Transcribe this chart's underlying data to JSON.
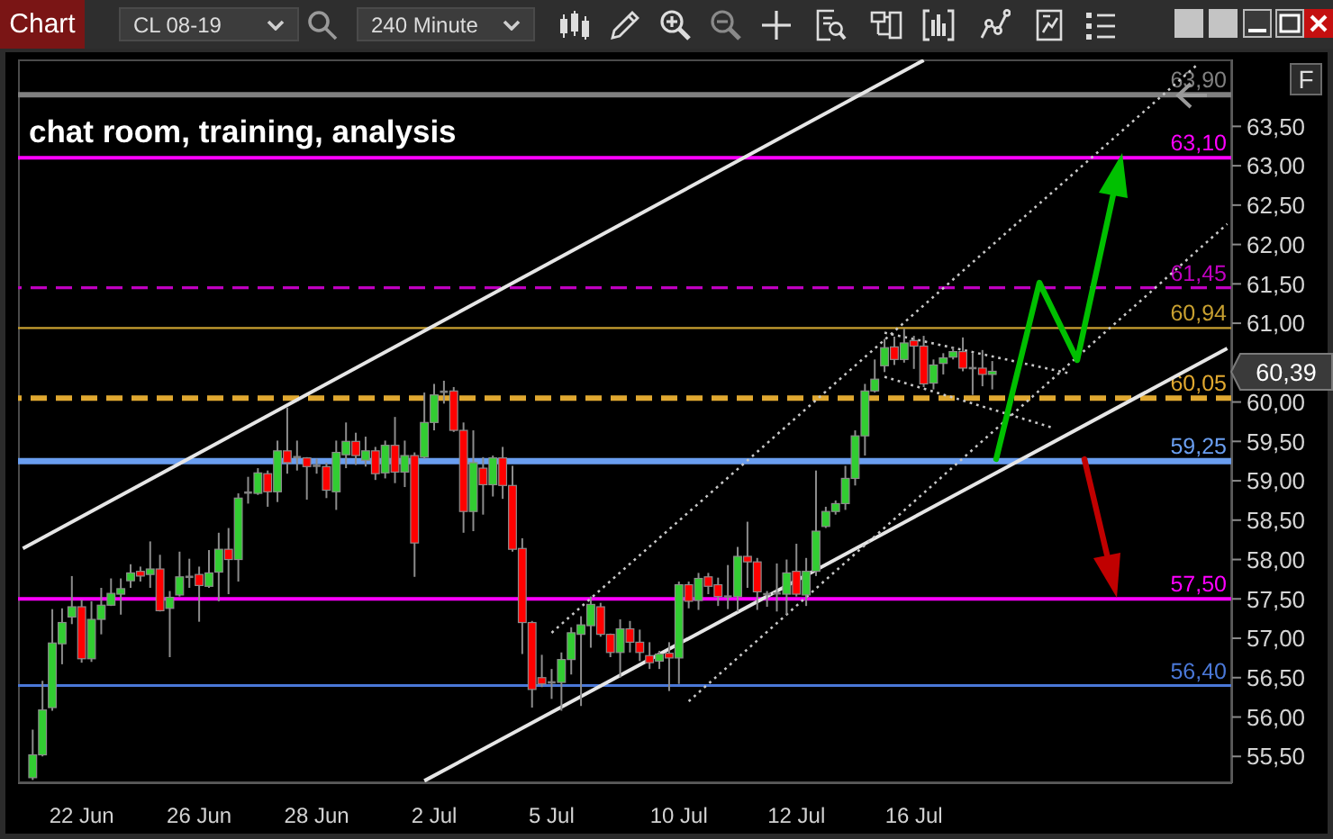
{
  "chart_data": {
    "type": "candlestick",
    "subtitle": "chat room, training, analysis",
    "categories": [
      null,
      null,
      null,
      null,
      null,
      null,
      "22 Jun",
      null,
      null,
      null,
      null,
      null,
      null,
      null,
      null,
      null,
      null,
      null,
      "26 Jun",
      null,
      null,
      null,
      null,
      null,
      null,
      null,
      null,
      null,
      null,
      null,
      "28 Jun",
      null,
      null,
      null,
      null,
      null,
      null,
      null,
      null,
      null,
      null,
      null,
      "2 Jul",
      null,
      null,
      null,
      null,
      null,
      null,
      null,
      null,
      null,
      null,
      null,
      "5 Jul",
      null,
      null,
      null,
      null,
      null,
      null,
      null,
      null,
      null,
      null,
      null,
      null,
      "10 Jul",
      null,
      null,
      null,
      null,
      null,
      null,
      null,
      null,
      null,
      null,
      null,
      "12 Jul",
      null,
      null,
      null,
      null,
      null,
      null,
      null,
      null,
      null,
      null,
      null,
      "16 Jul",
      null,
      null,
      null,
      null,
      null,
      null,
      null,
      null,
      null,
      null,
      null,
      null,
      null,
      null,
      null,
      null,
      null,
      null,
      null,
      null,
      null,
      null,
      null,
      null,
      null,
      null,
      null,
      null,
      null,
      null,
      null,
      null
    ],
    "ohlc": [
      null,
      [
        55.23,
        55.84,
        55.2,
        55.52
      ],
      [
        55.52,
        56.46,
        55.5,
        56.09
      ],
      [
        56.12,
        57.37,
        56.08,
        56.94
      ],
      [
        56.93,
        57.38,
        56.67,
        57.2
      ],
      [
        57.27,
        57.79,
        57.18,
        57.4
      ],
      [
        57.4,
        57.49,
        56.69,
        56.74
      ],
      [
        56.74,
        57.47,
        56.7,
        57.24
      ],
      [
        57.24,
        57.64,
        57.05,
        57.42
      ],
      [
        57.42,
        57.76,
        57.41,
        57.57
      ],
      [
        57.56,
        57.76,
        57.3,
        57.63
      ],
      [
        57.73,
        57.94,
        57.64,
        57.83
      ],
      [
        57.85,
        57.91,
        57.72,
        57.79
      ],
      [
        57.81,
        58.23,
        57.64,
        57.88
      ],
      [
        57.88,
        58.06,
        57.34,
        57.35
      ],
      [
        57.38,
        57.6,
        56.76,
        57.52
      ],
      [
        57.55,
        58.1,
        57.53,
        57.78
      ],
      [
        57.79,
        58.01,
        57.64,
        57.78
      ],
      [
        57.81,
        57.91,
        57.21,
        57.67
      ],
      [
        57.66,
        58.12,
        57.64,
        57.83
      ],
      [
        57.84,
        58.34,
        57.47,
        58.13
      ],
      [
        58.13,
        58.4,
        57.56,
        58.0
      ],
      [
        58.0,
        58.84,
        57.72,
        58.78
      ],
      [
        58.84,
        59.05,
        58.71,
        58.85
      ],
      [
        58.84,
        59.16,
        58.82,
        59.1
      ],
      [
        59.09,
        59.13,
        58.67,
        58.86
      ],
      [
        58.86,
        59.51,
        58.73,
        59.38
      ],
      [
        59.38,
        59.93,
        59.09,
        59.23
      ],
      [
        59.3,
        59.51,
        59.13,
        59.3
      ],
      [
        59.29,
        59.3,
        58.76,
        59.18
      ],
      [
        59.19,
        59.28,
        59.09,
        59.19
      ],
      [
        59.18,
        59.23,
        58.78,
        58.88
      ],
      [
        58.86,
        59.51,
        58.63,
        59.36
      ],
      [
        59.33,
        59.74,
        59.16,
        59.5
      ],
      [
        59.5,
        59.61,
        59.2,
        59.32
      ],
      [
        59.26,
        59.56,
        59.18,
        59.38
      ],
      [
        59.38,
        59.43,
        59.01,
        59.09
      ],
      [
        59.1,
        59.51,
        59.03,
        59.45
      ],
      [
        59.45,
        59.81,
        58.97,
        59.11
      ],
      [
        59.11,
        59.51,
        58.92,
        59.32
      ],
      [
        59.32,
        59.36,
        57.78,
        58.21
      ],
      [
        59.3,
        60.12,
        59.28,
        59.74
      ],
      [
        59.74,
        60.23,
        59.64,
        60.09
      ],
      [
        60.13,
        60.27,
        59.98,
        60.13
      ],
      [
        60.14,
        60.19,
        59.62,
        59.64
      ],
      [
        59.64,
        59.74,
        58.34,
        58.61
      ],
      [
        58.61,
        59.64,
        58.36,
        59.23
      ],
      [
        59.16,
        59.3,
        58.57,
        58.95
      ],
      [
        58.95,
        59.32,
        58.8,
        59.29
      ],
      [
        59.29,
        59.43,
        58.77,
        58.94
      ],
      [
        58.94,
        59.19,
        58.1,
        58.13
      ],
      [
        58.14,
        58.27,
        56.8,
        57.2
      ],
      [
        57.2,
        57.22,
        56.12,
        56.35
      ],
      [
        56.5,
        56.79,
        56.38,
        56.42
      ],
      [
        56.44,
        56.61,
        56.23,
        56.44
      ],
      [
        56.44,
        56.82,
        56.08,
        56.73
      ],
      [
        56.73,
        57.14,
        56.54,
        57.07
      ],
      [
        57.05,
        57.28,
        56.14,
        57.17
      ],
      [
        57.16,
        57.53,
        56.88,
        57.43
      ],
      [
        57.4,
        57.45,
        57.02,
        57.05
      ],
      [
        57.05,
        57.06,
        56.76,
        56.82
      ],
      [
        56.82,
        57.24,
        56.5,
        57.12
      ],
      [
        57.12,
        57.22,
        56.82,
        56.95
      ],
      [
        56.95,
        57.11,
        56.71,
        56.82
      ],
      [
        56.78,
        56.95,
        56.61,
        56.69
      ],
      [
        56.71,
        56.84,
        56.61,
        56.8
      ],
      [
        56.81,
        56.95,
        56.33,
        56.75
      ],
      [
        56.75,
        57.72,
        56.42,
        57.68
      ],
      [
        57.68,
        57.72,
        57.38,
        57.47
      ],
      [
        57.48,
        57.83,
        57.36,
        57.76
      ],
      [
        57.78,
        57.83,
        57.56,
        57.66
      ],
      [
        57.68,
        57.77,
        57.41,
        57.53
      ],
      [
        57.53,
        57.93,
        57.37,
        57.53
      ],
      [
        57.53,
        58.16,
        57.34,
        58.04
      ],
      [
        58.04,
        58.48,
        57.64,
        57.97
      ],
      [
        57.97,
        58.02,
        57.36,
        57.59
      ],
      [
        57.57,
        57.6,
        57.4,
        57.56
      ],
      [
        57.57,
        57.95,
        57.34,
        57.57
      ],
      [
        57.56,
        58.0,
        57.3,
        57.83
      ],
      [
        57.85,
        58.2,
        57.53,
        57.56
      ],
      [
        57.55,
        58.02,
        57.41,
        57.85
      ],
      [
        57.85,
        59.13,
        57.79,
        58.36
      ],
      [
        58.42,
        58.67,
        58.4,
        58.61
      ],
      [
        58.61,
        58.75,
        58.57,
        58.71
      ],
      [
        58.71,
        59.19,
        58.63,
        59.03
      ],
      [
        59.03,
        59.64,
        58.94,
        59.57
      ],
      [
        59.57,
        60.23,
        59.32,
        60.14
      ],
      [
        60.14,
        60.54,
        60.12,
        60.29
      ],
      [
        60.46,
        60.8,
        60.38,
        60.69
      ],
      [
        60.7,
        60.83,
        60.47,
        60.54
      ],
      [
        60.54,
        60.93,
        60.5,
        60.75
      ],
      [
        60.78,
        60.84,
        60.42,
        60.71
      ],
      [
        60.71,
        60.84,
        60.19,
        60.23
      ],
      [
        60.24,
        60.54,
        60.16,
        60.47
      ],
      [
        60.49,
        60.62,
        60.35,
        60.56
      ],
      [
        60.57,
        60.7,
        60.54,
        60.64
      ],
      [
        60.64,
        60.82,
        60.39,
        60.43
      ],
      [
        60.43,
        60.62,
        60.09,
        60.43
      ],
      [
        60.43,
        60.66,
        60.2,
        60.35
      ],
      [
        60.35,
        60.52,
        60.16,
        60.39
      ],
      null,
      null,
      null,
      null,
      null,
      null,
      null,
      null,
      null,
      null,
      null,
      null,
      null,
      null,
      null,
      null,
      null,
      null,
      null,
      null,
      null,
      null,
      null,
      null
    ],
    "colors": [
      null,
      "#32cd32",
      "#32cd32",
      "#32cd32",
      "#32cd32",
      "#32cd32",
      "#ff0000",
      "#32cd32",
      "#32cd32",
      "#32cd32",
      "#32cd32",
      "#32cd32",
      "#ff0000",
      "#32cd32",
      "#ff0000",
      "#32cd32",
      "#32cd32",
      "#808080",
      "#ff0000",
      "#32cd32",
      "#32cd32",
      "#ff0000",
      "#32cd32",
      "#808080",
      "#32cd32",
      "#ff0000",
      "#32cd32",
      "#ff0000",
      "#808080",
      "#ff0000",
      "#808080",
      "#ff0000",
      "#32cd32",
      "#32cd32",
      "#ff0000",
      "#32cd32",
      "#ff0000",
      "#32cd32",
      "#ff0000",
      "#32cd32",
      "#ff0000",
      "#32cd32",
      "#32cd32",
      "#808080",
      "#ff0000",
      "#ff0000",
      "#32cd32",
      "#ff0000",
      "#32cd32",
      "#ff0000",
      "#ff0000",
      "#ff0000",
      "#ff0000",
      "#ff0000",
      "#808080",
      "#32cd32",
      "#32cd32",
      "#32cd32",
      "#32cd32",
      "#ff0000",
      "#ff0000",
      "#32cd32",
      "#ff0000",
      "#ff0000",
      "#ff0000",
      "#32cd32",
      "#ff0000",
      "#32cd32",
      "#ff0000",
      "#32cd32",
      "#ff0000",
      "#ff0000",
      "#808080",
      "#32cd32",
      "#ff0000",
      "#ff0000",
      "#808080",
      "#808080",
      "#32cd32",
      "#ff0000",
      "#32cd32",
      "#32cd32",
      "#32cd32",
      "#32cd32",
      "#32cd32",
      "#32cd32",
      "#32cd32",
      "#32cd32",
      "#32cd32",
      "#ff0000",
      "#32cd32",
      "#ff0000",
      "#ff0000",
      "#32cd32",
      "#32cd32",
      "#32cd32",
      "#ff0000",
      "#808080",
      "#ff0000",
      "#32cd32",
      null,
      null,
      null,
      null,
      null,
      null,
      null,
      null,
      null,
      null,
      null,
      null,
      null,
      null,
      null,
      null,
      null,
      null,
      null,
      null,
      null,
      null,
      null,
      null
    ],
    "ylim": [
      55.16,
      64.35
    ],
    "yticks": [
      {
        "value": 55.5,
        "label": "55,50"
      },
      {
        "value": 56,
        "label": "56,00"
      },
      {
        "value": 56.5,
        "label": "56,50"
      },
      {
        "value": 57,
        "label": "57,00"
      },
      {
        "value": 57.5,
        "label": "57,50"
      },
      {
        "value": 58,
        "label": "58,00"
      },
      {
        "value": 58.5,
        "label": "58,50"
      },
      {
        "value": 59,
        "label": "59,00"
      },
      {
        "value": 59.5,
        "label": "59,50"
      },
      {
        "value": 60,
        "label": "60,00"
      },
      {
        "value": 61,
        "label": "61,00"
      },
      {
        "value": 61.5,
        "label": "61,50"
      },
      {
        "value": 62,
        "label": "62,00"
      },
      {
        "value": 62.5,
        "label": "62,50"
      },
      {
        "value": 63,
        "label": "63,00"
      },
      {
        "value": 63.5,
        "label": "63,50"
      }
    ],
    "series": [
      {
        "type": "line",
        "color": "#e6e6e6",
        "line_style": "solid",
        "values": [
          58.14,
          null,
          null,
          null,
          null,
          null,
          null,
          null,
          null,
          null,
          null,
          null,
          null,
          null,
          null,
          null,
          null,
          null,
          null,
          null,
          null,
          null,
          null,
          null,
          null,
          null,
          null,
          null,
          null,
          null,
          null,
          null,
          null,
          null,
          null,
          null,
          null,
          null,
          null,
          null,
          null,
          null,
          null,
          null,
          null,
          null,
          null,
          null,
          null,
          null,
          null,
          null,
          null,
          null,
          null,
          null,
          null,
          null,
          null,
          null,
          null,
          null,
          null,
          null,
          null,
          null,
          null,
          null,
          null,
          null,
          null,
          null,
          null,
          null,
          null,
          null,
          null,
          null,
          null,
          null,
          null,
          null,
          null,
          null,
          null,
          null,
          null,
          null,
          null,
          null,
          null,
          null,
          64.34,
          null,
          null,
          null,
          null,
          null,
          null,
          null,
          null,
          null,
          null,
          null,
          null,
          null,
          null,
          null,
          null,
          null,
          null,
          null,
          null,
          null,
          null,
          null,
          null,
          null,
          null,
          null,
          null,
          null,
          null,
          null
        ]
      },
      {
        "type": "line",
        "color": "#e6e6e6",
        "line_style": "solid",
        "values": [
          null,
          null,
          null,
          null,
          null,
          null,
          null,
          null,
          null,
          null,
          null,
          null,
          null,
          null,
          null,
          null,
          null,
          null,
          null,
          null,
          null,
          null,
          null,
          null,
          null,
          null,
          null,
          null,
          null,
          null,
          null,
          null,
          null,
          null,
          null,
          null,
          null,
          null,
          null,
          null,
          null,
          55.19,
          null,
          null,
          null,
          null,
          null,
          null,
          null,
          null,
          null,
          null,
          null,
          null,
          null,
          null,
          null,
          null,
          null,
          null,
          null,
          null,
          null,
          null,
          null,
          null,
          null,
          null,
          null,
          null,
          null,
          null,
          null,
          null,
          null,
          null,
          null,
          null,
          null,
          null,
          null,
          null,
          null,
          null,
          null,
          null,
          null,
          null,
          null,
          null,
          null,
          null,
          null,
          null,
          null,
          null,
          null,
          null,
          null,
          null,
          null,
          null,
          null,
          null,
          null,
          null,
          null,
          null,
          null,
          null,
          null,
          null,
          null,
          null,
          null,
          null,
          null,
          null,
          null,
          null,
          null,
          null,
          null,
          60.68
        ]
      },
      {
        "type": "line",
        "color": "#c8c8c8",
        "line_style": "dotted",
        "values": [
          null,
          null,
          null,
          null,
          null,
          null,
          null,
          null,
          null,
          null,
          null,
          null,
          null,
          null,
          null,
          null,
          null,
          null,
          null,
          null,
          null,
          null,
          null,
          null,
          null,
          null,
          null,
          null,
          null,
          null,
          null,
          null,
          null,
          null,
          null,
          null,
          null,
          null,
          null,
          null,
          null,
          null,
          null,
          null,
          null,
          null,
          null,
          null,
          null,
          null,
          null,
          null,
          null,
          null,
          57.07,
          null,
          null,
          null,
          null,
          null,
          null,
          null,
          null,
          null,
          null,
          null,
          null,
          null,
          null,
          null,
          null,
          null,
          null,
          null,
          null,
          null,
          null,
          null,
          null,
          null,
          null,
          null,
          null,
          null,
          null,
          null,
          null,
          null,
          null,
          null,
          null,
          null,
          null,
          null,
          null,
          null,
          null,
          null,
          null,
          null,
          null,
          null,
          null,
          null,
          null,
          null,
          null,
          null,
          null,
          null,
          null,
          null,
          null,
          null,
          null,
          null,
          null,
          null,
          null,
          null,
          64.29,
          null,
          null,
          null
        ]
      },
      {
        "type": "line",
        "color": "#c8c8c8",
        "line_style": "dotted",
        "values": [
          null,
          null,
          null,
          null,
          null,
          null,
          null,
          null,
          null,
          null,
          null,
          null,
          null,
          null,
          null,
          null,
          null,
          null,
          null,
          null,
          null,
          null,
          null,
          null,
          null,
          null,
          null,
          null,
          null,
          null,
          null,
          null,
          null,
          null,
          null,
          null,
          null,
          null,
          null,
          null,
          null,
          null,
          null,
          null,
          null,
          null,
          null,
          null,
          null,
          null,
          null,
          null,
          null,
          null,
          null,
          null,
          null,
          null,
          null,
          null,
          null,
          null,
          null,
          null,
          null,
          null,
          null,
          null,
          56.2,
          null,
          null,
          null,
          null,
          null,
          null,
          null,
          null,
          null,
          null,
          null,
          null,
          null,
          null,
          null,
          null,
          null,
          null,
          null,
          null,
          null,
          null,
          null,
          null,
          null,
          null,
          null,
          null,
          null,
          null,
          null,
          null,
          null,
          null,
          null,
          null,
          null,
          null,
          null,
          null,
          null,
          null,
          null,
          null,
          null,
          null,
          null,
          null,
          null,
          null,
          null,
          null,
          null,
          null,
          62.26
        ]
      },
      {
        "type": "line",
        "color": "#c8c8c8",
        "line_style": "dotted",
        "values": [
          null,
          null,
          null,
          null,
          null,
          null,
          null,
          null,
          null,
          null,
          null,
          null,
          null,
          null,
          null,
          null,
          null,
          null,
          null,
          null,
          null,
          null,
          null,
          null,
          null,
          null,
          null,
          null,
          null,
          null,
          null,
          null,
          null,
          null,
          null,
          null,
          null,
          null,
          null,
          null,
          null,
          null,
          null,
          null,
          null,
          null,
          null,
          null,
          null,
          null,
          null,
          null,
          null,
          null,
          null,
          null,
          null,
          null,
          null,
          null,
          null,
          null,
          null,
          null,
          null,
          null,
          null,
          null,
          null,
          null,
          null,
          null,
          null,
          null,
          null,
          null,
          null,
          null,
          null,
          null,
          null,
          null,
          null,
          null,
          null,
          null,
          null,
          null,
          60.88,
          null,
          null,
          null,
          null,
          null,
          null,
          null,
          null,
          null,
          null,
          null,
          null,
          null,
          null,
          null,
          null,
          null,
          null,
          60.36,
          null,
          null,
          null,
          null,
          null,
          null,
          null,
          null,
          null,
          null,
          null,
          null,
          null,
          null,
          null,
          null
        ]
      },
      {
        "type": "line",
        "color": "#c8c8c8",
        "line_style": "dotted",
        "values": [
          null,
          null,
          null,
          null,
          null,
          null,
          null,
          null,
          null,
          null,
          null,
          null,
          null,
          null,
          null,
          null,
          null,
          null,
          null,
          null,
          null,
          null,
          null,
          null,
          null,
          null,
          null,
          null,
          null,
          null,
          null,
          null,
          null,
          null,
          null,
          null,
          null,
          null,
          null,
          null,
          null,
          null,
          null,
          null,
          null,
          null,
          null,
          null,
          null,
          null,
          null,
          null,
          null,
          null,
          null,
          null,
          null,
          null,
          null,
          null,
          null,
          null,
          null,
          null,
          null,
          null,
          null,
          null,
          null,
          null,
          null,
          null,
          null,
          null,
          null,
          null,
          null,
          null,
          null,
          null,
          null,
          null,
          null,
          null,
          null,
          null,
          null,
          null,
          60.32,
          null,
          null,
          null,
          null,
          null,
          null,
          null,
          null,
          null,
          null,
          null,
          null,
          null,
          null,
          null,
          null,
          59.68,
          null,
          null,
          null,
          null,
          null,
          null,
          null,
          null,
          null,
          null,
          null,
          null,
          null,
          null,
          null,
          null,
          null,
          null
        ]
      }
    ],
    "ref_lines": [
      {
        "axis": "y",
        "value": 63.9,
        "label": "63,90",
        "color": "#808080",
        "line_style": "solid"
      },
      {
        "axis": "y",
        "value": 63.1,
        "label": "63,10",
        "color": "#ff00ff",
        "line_style": "solid"
      },
      {
        "axis": "y",
        "value": 61.45,
        "label": "61,45",
        "color": "#c000c0",
        "line_style": "dashed"
      },
      {
        "axis": "y",
        "value": 60.94,
        "label": "60,94",
        "color": "#c8a030",
        "line_style": "solid"
      },
      {
        "axis": "y",
        "value": 60.05,
        "label": "60,05",
        "color": "#e0a830",
        "line_style": "dashed"
      },
      {
        "axis": "y",
        "value": 59.25,
        "label": "59,25",
        "color": "#6a9ef0",
        "line_style": "solid"
      },
      {
        "axis": "y",
        "value": 57.5,
        "label": "57,50",
        "color": "#ff00ff",
        "line_style": "solid"
      },
      {
        "axis": "y",
        "value": 56.4,
        "label": "56,40",
        "color": "#4a78d8",
        "line_style": "solid"
      }
    ],
    "annotations": [
      "Chart",
      "CL 08-19",
      "240 Minute",
      "F",
      "60,39"
    ]
  }
}
